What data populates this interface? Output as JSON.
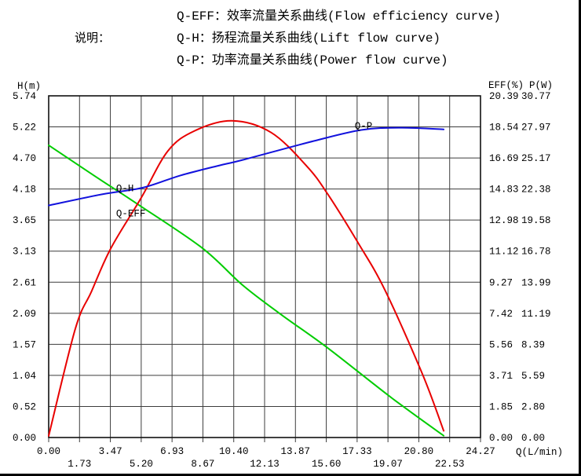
{
  "page": {
    "legend_label": "说明：",
    "legend_lines": [
      "Q-EFF：效率流量关系曲线(Flow efficiency curve)",
      "Q-H：扬程流量关系曲线(Lift flow curve)",
      "Q-P：功率流量关系曲线(Power flow curve)"
    ]
  },
  "chart_data": {
    "type": "line",
    "title": "",
    "grid": true,
    "legend_position": "labels-on-curves",
    "x_axis": {
      "label": "Q(L/min)",
      "min": 0,
      "max": 24.27,
      "tick_labels": [
        "0.00",
        "1.73",
        "3.47",
        "5.20",
        "6.93",
        "8.67",
        "10.40",
        "12.13",
        "13.87",
        "15.60",
        "17.33",
        "19.07",
        "20.80",
        "22.53",
        "24.27"
      ]
    },
    "y_axes": [
      {
        "id": "H",
        "label": "H(m)",
        "side": "left",
        "min": 0,
        "max": 5.74,
        "tick_labels": [
          "5.74",
          "5.22",
          "4.70",
          "4.18",
          "3.65",
          "3.13",
          "2.61",
          "2.09",
          "1.57",
          "1.04",
          "0.52",
          "0.00"
        ]
      },
      {
        "id": "EFF",
        "label": "EFF(%)",
        "side": "right",
        "min": 0,
        "max": 20.39,
        "tick_labels": [
          "20.39",
          "18.54",
          "16.69",
          "14.83",
          "12.98",
          "11.12",
          "9.27",
          "7.42",
          "5.56",
          "3.71",
          "1.85",
          "0.00"
        ]
      },
      {
        "id": "P",
        "label": "P(W)",
        "side": "right",
        "min": 0,
        "max": 30.77,
        "tick_labels": [
          "30.77",
          "27.97",
          "25.17",
          "22.38",
          "19.58",
          "16.78",
          "13.99",
          "11.19",
          "8.39",
          "5.59",
          "2.80",
          "0.00"
        ]
      }
    ],
    "series": [
      {
        "name": "Q-H",
        "axis": "H",
        "color": "#00cc00",
        "points": [
          [
            0,
            4.91
          ],
          [
            2.5,
            4.41
          ],
          [
            5.0,
            3.92
          ],
          [
            8.6,
            3.19
          ],
          [
            10.9,
            2.56
          ],
          [
            13.0,
            2.08
          ],
          [
            15.7,
            1.5
          ],
          [
            19.3,
            0.66
          ],
          [
            22.2,
            0.03
          ]
        ]
      },
      {
        "name": "Q-EFF",
        "axis": "EFF",
        "color": "#e80000",
        "points": [
          [
            0,
            0.1
          ],
          [
            1.5,
            6.5
          ],
          [
            2.4,
            8.7
          ],
          [
            3.5,
            11.3
          ],
          [
            5.2,
            14.3
          ],
          [
            6.7,
            17.1
          ],
          [
            8.2,
            18.3
          ],
          [
            10.3,
            18.9
          ],
          [
            12.5,
            18.2
          ],
          [
            14.5,
            16.2
          ],
          [
            15.7,
            14.5
          ],
          [
            17.4,
            11.6
          ],
          [
            18.9,
            8.8
          ],
          [
            21.0,
            3.8
          ],
          [
            22.2,
            0.4
          ]
        ]
      },
      {
        "name": "Q-P",
        "axis": "P",
        "color": "#1212dd",
        "points": [
          [
            0,
            20.9
          ],
          [
            3.0,
            21.9
          ],
          [
            5.3,
            22.5
          ],
          [
            7.4,
            23.6
          ],
          [
            9.6,
            24.5
          ],
          [
            10.9,
            25.0
          ],
          [
            14.9,
            26.7
          ],
          [
            17.6,
            27.7
          ],
          [
            19.8,
            27.9
          ],
          [
            22.2,
            27.75
          ]
        ]
      }
    ],
    "annotations": [
      {
        "text": "Q-H",
        "q": 3.79,
        "axis": "H",
        "v": 4.14
      },
      {
        "text": "Q-EFF",
        "q": 3.79,
        "axis": "EFF",
        "v": 13.2
      },
      {
        "text": "Q-P",
        "q": 17.2,
        "axis": "P",
        "v": 27.8
      }
    ],
    "style": {
      "grid_color": "#3c3c3c",
      "border_color": "#111111",
      "curve_width": 2,
      "background": "#ffffff"
    }
  }
}
